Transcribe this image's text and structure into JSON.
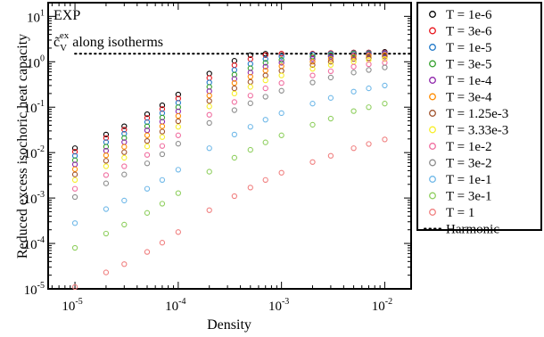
{
  "chart_data": {
    "type": "scatter",
    "xlabel": "Density",
    "ylabel": "Reduced excess isochoric heat capacity",
    "x_scale": "log",
    "y_scale": "log",
    "xlim": [
      5.5e-06,
      0.018
    ],
    "ylim": [
      1e-05,
      20
    ],
    "x_ticks": [
      {
        "value": 1e-05,
        "base": "10",
        "exp": "-5"
      },
      {
        "value": 0.0001,
        "base": "10",
        "exp": "-4"
      },
      {
        "value": 0.001,
        "base": "10",
        "exp": "-3"
      },
      {
        "value": 0.01,
        "base": "10",
        "exp": "-2"
      }
    ],
    "y_ticks": [
      {
        "value": 1e-05,
        "base": "10",
        "exp": "-5"
      },
      {
        "value": 0.0001,
        "base": "10",
        "exp": "-4"
      },
      {
        "value": 0.001,
        "base": "10",
        "exp": "-3"
      },
      {
        "value": 0.01,
        "base": "10",
        "exp": "-2"
      },
      {
        "value": 0.1,
        "base": "10",
        "exp": "-1"
      },
      {
        "value": 1,
        "base": "10",
        "exp": "0"
      },
      {
        "value": 10,
        "base": "10",
        "exp": "1"
      }
    ],
    "annotations": {
      "line1": "EXP",
      "line2_main": "c̃",
      "line2_sub": "V",
      "line2_sup": "ex",
      "line2_rest": " along isotherms"
    },
    "legend_position": "outside-right",
    "harmonic": {
      "name": "Harmonic",
      "y": 1.5,
      "x_from": 1e-05
    },
    "x": [
      1e-05,
      2e-05,
      3e-05,
      5e-05,
      7e-05,
      0.0001,
      0.0002,
      0.00035,
      0.0005,
      0.0007,
      0.001,
      0.002,
      0.003,
      0.005,
      0.007,
      0.01
    ],
    "series": [
      {
        "name": "T = 1e-6",
        "color": "#000000",
        "values": [
          0.0125,
          0.025,
          0.038,
          0.07,
          0.11,
          0.19,
          0.55,
          1.05,
          1.4,
          1.5,
          1.5,
          1.5,
          1.55,
          1.6,
          1.6,
          1.65
        ]
      },
      {
        "name": "T = 3e-6",
        "color": "#e8141c",
        "values": [
          0.0105,
          0.021,
          0.032,
          0.058,
          0.091,
          0.155,
          0.44,
          0.84,
          1.15,
          1.4,
          1.5,
          1.5,
          1.55,
          1.6,
          1.6,
          1.6
        ]
      },
      {
        "name": "T = 1e-5",
        "color": "#1f78c8",
        "values": [
          0.0085,
          0.017,
          0.026,
          0.047,
          0.074,
          0.125,
          0.35,
          0.66,
          0.9,
          1.15,
          1.3,
          1.45,
          1.5,
          1.55,
          1.55,
          1.55
        ]
      },
      {
        "name": "T = 3e-5",
        "color": "#33a02c",
        "values": [
          0.0068,
          0.0135,
          0.021,
          0.038,
          0.059,
          0.1,
          0.28,
          0.52,
          0.72,
          0.95,
          1.1,
          1.3,
          1.4,
          1.5,
          1.5,
          1.5
        ]
      },
      {
        "name": "T = 1e-4",
        "color": "#8e24aa",
        "values": [
          0.0055,
          0.011,
          0.017,
          0.031,
          0.048,
          0.081,
          0.225,
          0.42,
          0.58,
          0.78,
          0.95,
          1.15,
          1.3,
          1.4,
          1.45,
          1.5
        ]
      },
      {
        "name": "T = 3e-4",
        "color": "#ff8c00",
        "values": [
          0.0043,
          0.0087,
          0.0134,
          0.024,
          0.038,
          0.064,
          0.18,
          0.34,
          0.47,
          0.64,
          0.8,
          1.0,
          1.15,
          1.3,
          1.35,
          1.4
        ]
      },
      {
        "name": "T = 1.25e-3",
        "color": "#a0522d",
        "values": [
          0.0033,
          0.0066,
          0.0102,
          0.018,
          0.029,
          0.049,
          0.137,
          0.26,
          0.36,
          0.5,
          0.63,
          0.85,
          1.0,
          1.15,
          1.2,
          1.3
        ]
      },
      {
        "name": "T = 3.33e-3",
        "color": "#f7ee2a",
        "values": [
          0.0025,
          0.005,
          0.0077,
          0.0137,
          0.022,
          0.037,
          0.104,
          0.2,
          0.28,
          0.39,
          0.5,
          0.7,
          0.85,
          1.0,
          1.1,
          1.15
        ]
      },
      {
        "name": "T = 1e-2",
        "color": "#f06ea0",
        "values": [
          0.0016,
          0.0032,
          0.005,
          0.0089,
          0.014,
          0.024,
          0.068,
          0.13,
          0.18,
          0.26,
          0.34,
          0.5,
          0.62,
          0.78,
          0.88,
          0.95
        ]
      },
      {
        "name": "T = 3e-2",
        "color": "#8c8c8c",
        "values": [
          0.00105,
          0.0021,
          0.0033,
          0.0058,
          0.0092,
          0.0157,
          0.045,
          0.086,
          0.122,
          0.17,
          0.23,
          0.35,
          0.45,
          0.58,
          0.66,
          0.75
        ]
      },
      {
        "name": "T = 1e-1",
        "color": "#6fb8e8",
        "values": [
          0.00028,
          0.00057,
          0.00088,
          0.0016,
          0.0025,
          0.0042,
          0.0125,
          0.025,
          0.037,
          0.053,
          0.074,
          0.12,
          0.16,
          0.22,
          0.26,
          0.3
        ]
      },
      {
        "name": "T = 3e-1",
        "color": "#8fcf5f",
        "values": [
          8e-05,
          0.000165,
          0.00026,
          0.00047,
          0.00075,
          0.00128,
          0.0038,
          0.0077,
          0.0115,
          0.0168,
          0.024,
          0.041,
          0.056,
          0.082,
          0.1,
          0.12
        ]
      },
      {
        "name": "T = 1",
        "color": "#f08080",
        "values": [
          1.1e-05,
          2.3e-05,
          3.5e-05,
          6.5e-05,
          0.000104,
          0.000178,
          0.00054,
          0.0011,
          0.0017,
          0.0025,
          0.0036,
          0.0062,
          0.0085,
          0.0125,
          0.0155,
          0.0195
        ]
      }
    ]
  }
}
